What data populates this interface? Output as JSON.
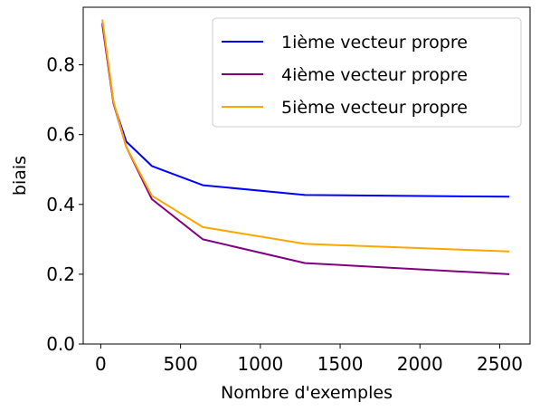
{
  "chart_data": {
    "type": "line",
    "xlabel": "Nombre d'exemples",
    "ylabel": "biais",
    "xlim": [
      -110,
      2690
    ],
    "ylim": [
      0,
      0.965
    ],
    "xticks": [
      "0",
      "500",
      "1000",
      "1500",
      "2000",
      "2500"
    ],
    "xtick_values": [
      0,
      500,
      1000,
      1500,
      2000,
      2500
    ],
    "yticks": [
      "0.0",
      "0.2",
      "0.4",
      "0.6",
      "0.8"
    ],
    "ytick_values": [
      0,
      0.2,
      0.4,
      0.6,
      0.8
    ],
    "grid": false,
    "legend_position": "top-right",
    "x": [
      10,
      80,
      160,
      320,
      640,
      1280,
      2560
    ],
    "series": [
      {
        "name": "1ième vecteur propre",
        "color": "#0000ff",
        "values": [
          0.92,
          0.69,
          0.58,
          0.51,
          0.455,
          0.427,
          0.422
        ]
      },
      {
        "name": "4ième vecteur propre",
        "color": "#800080",
        "values": [
          0.915,
          0.69,
          0.565,
          0.415,
          0.3,
          0.232,
          0.2
        ]
      },
      {
        "name": "5ième vecteur propre",
        "color": "#ffa500",
        "values": [
          0.93,
          0.695,
          0.565,
          0.425,
          0.335,
          0.287,
          0.265
        ]
      }
    ]
  }
}
